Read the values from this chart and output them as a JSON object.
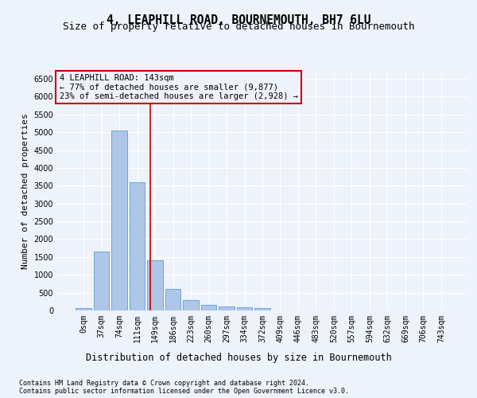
{
  "title": "4, LEAPHILL ROAD, BOURNEMOUTH, BH7 6LU",
  "subtitle": "Size of property relative to detached houses in Bournemouth",
  "xlabel": "Distribution of detached houses by size in Bournemouth",
  "ylabel": "Number of detached properties",
  "footnote1": "Contains HM Land Registry data © Crown copyright and database right 2024.",
  "footnote2": "Contains public sector information licensed under the Open Government Licence v3.0.",
  "bar_labels": [
    "0sqm",
    "37sqm",
    "74sqm",
    "111sqm",
    "149sqm",
    "186sqm",
    "223sqm",
    "260sqm",
    "297sqm",
    "334sqm",
    "372sqm",
    "409sqm",
    "446sqm",
    "483sqm",
    "520sqm",
    "557sqm",
    "594sqm",
    "632sqm",
    "669sqm",
    "706sqm",
    "743sqm"
  ],
  "bar_values": [
    75,
    1650,
    5050,
    3600,
    1400,
    610,
    290,
    155,
    110,
    80,
    60,
    0,
    0,
    0,
    0,
    0,
    0,
    0,
    0,
    0,
    0
  ],
  "bar_color": "#aec6e8",
  "bar_edge_color": "#5a9fd4",
  "ylim": [
    0,
    6700
  ],
  "yticks": [
    0,
    500,
    1000,
    1500,
    2000,
    2500,
    3000,
    3500,
    4000,
    4500,
    5000,
    5500,
    6000,
    6500
  ],
  "vline_x": 3.72,
  "vline_color": "#cc0000",
  "annotation_text": "4 LEAPHILL ROAD: 143sqm\n← 77% of detached houses are smaller (9,877)\n23% of semi-detached houses are larger (2,928) →",
  "bg_color": "#eef2fa",
  "grid_color": "#ffffff",
  "title_fontsize": 10.5,
  "subtitle_fontsize": 9,
  "ylabel_fontsize": 8,
  "xlabel_fontsize": 8.5,
  "tick_fontsize": 7,
  "annotation_fontsize": 7.5,
  "footnote_fontsize": 6
}
